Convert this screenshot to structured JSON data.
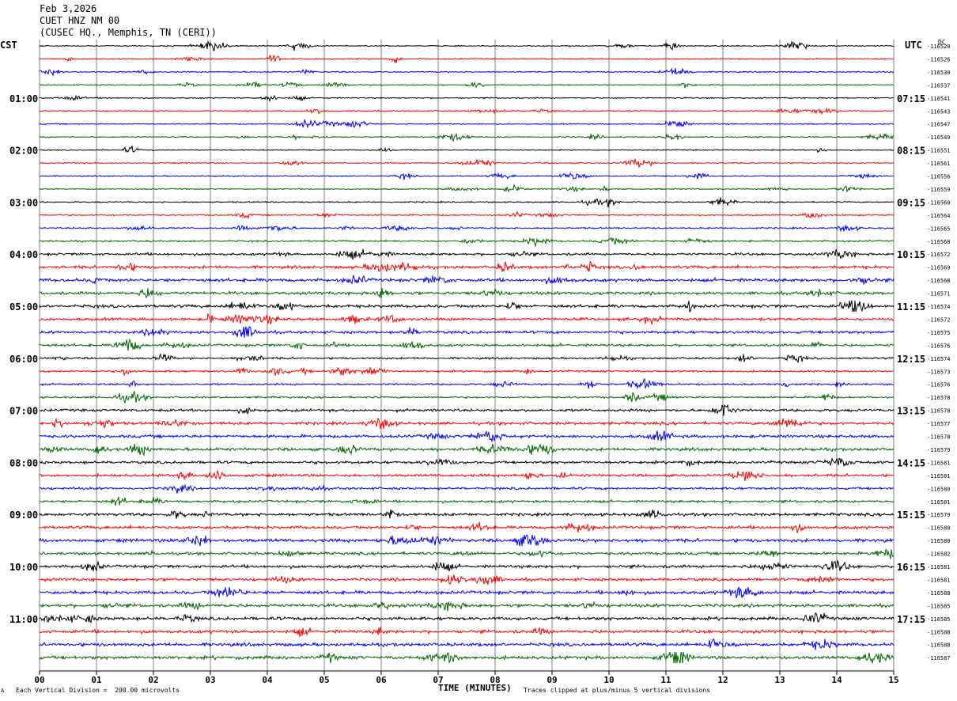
{
  "header": {
    "date": "Feb 3,2026",
    "station": "CUET HNZ NM 00",
    "location": "(CUSEC HQ., Memphis, TN (CERI))"
  },
  "left_tz": "CST",
  "right_tz": "UTC",
  "dc_label": "DC",
  "footer": {
    "scale_note": "Each Vertical Division =  200.00 microvolts",
    "clip_note": "Traces clipped at plus/minus 5 vertical divisions",
    "corner_mark": "A"
  },
  "colors": {
    "cycle": [
      "#000000",
      "#ff0000",
      "#0000ff",
      "#006600"
    ],
    "grid": "#7f7f7f"
  },
  "chart_data": {
    "type": "line",
    "title": "CUET HNZ NM 00",
    "xlabel": "TIME (MINUTES)",
    "x_ticks": [
      "00",
      "01",
      "02",
      "03",
      "04",
      "05",
      "06",
      "07",
      "08",
      "09",
      "10",
      "11",
      "12",
      "13",
      "14",
      "15"
    ],
    "xlim": [
      0,
      15
    ],
    "trace_minutes": 15,
    "traces_count": 48,
    "left_hour_labels": [
      "01:00",
      "02:00",
      "03:00",
      "04:00",
      "05:00",
      "06:00",
      "07:00",
      "08:00",
      "09:00",
      "10:00",
      "11:00"
    ],
    "right_hour_labels": [
      "07:15",
      "08:15",
      "09:15",
      "10:15",
      "11:15",
      "12:15",
      "13:15",
      "14:15",
      "15:15",
      "16:15",
      "17:15"
    ],
    "dc_offsets": [
      "-116520",
      "-116526",
      "-116530",
      "-116537",
      "-116541",
      "-116543",
      "-116547",
      "-116549",
      "-116551",
      "-116561",
      "-116556",
      "-116559",
      "-116560",
      "-116564",
      "-116565",
      "-116568",
      "-116572",
      "-116569",
      "-116568",
      "-116571",
      "-116574",
      "-116572",
      "-116575",
      "-116576",
      "-116574",
      "-116573",
      "-116576",
      "-116578",
      "-116578",
      "-116577",
      "-116578",
      "-116579",
      "-116581",
      "-116581",
      "-116580",
      "-116581",
      "-116579",
      "-116580",
      "-116580",
      "-116582",
      "-116581",
      "-116581",
      "-116588",
      "-116585",
      "-116585",
      "-116588",
      "-116588",
      "-116587"
    ],
    "noise_level": [
      0.22,
      0.22,
      0.22,
      0.2,
      0.22,
      0.22,
      0.22,
      0.2,
      0.22,
      0.22,
      0.22,
      0.2,
      0.25,
      0.25,
      0.28,
      0.3,
      0.45,
      0.55,
      0.6,
      0.55,
      0.55,
      0.5,
      0.5,
      0.45,
      0.35,
      0.35,
      0.35,
      0.35,
      0.5,
      0.55,
      0.55,
      0.55,
      0.5,
      0.5,
      0.45,
      0.45,
      0.55,
      0.55,
      0.6,
      0.5,
      0.55,
      0.55,
      0.6,
      0.6,
      0.6,
      0.6,
      0.6,
      0.6
    ]
  }
}
